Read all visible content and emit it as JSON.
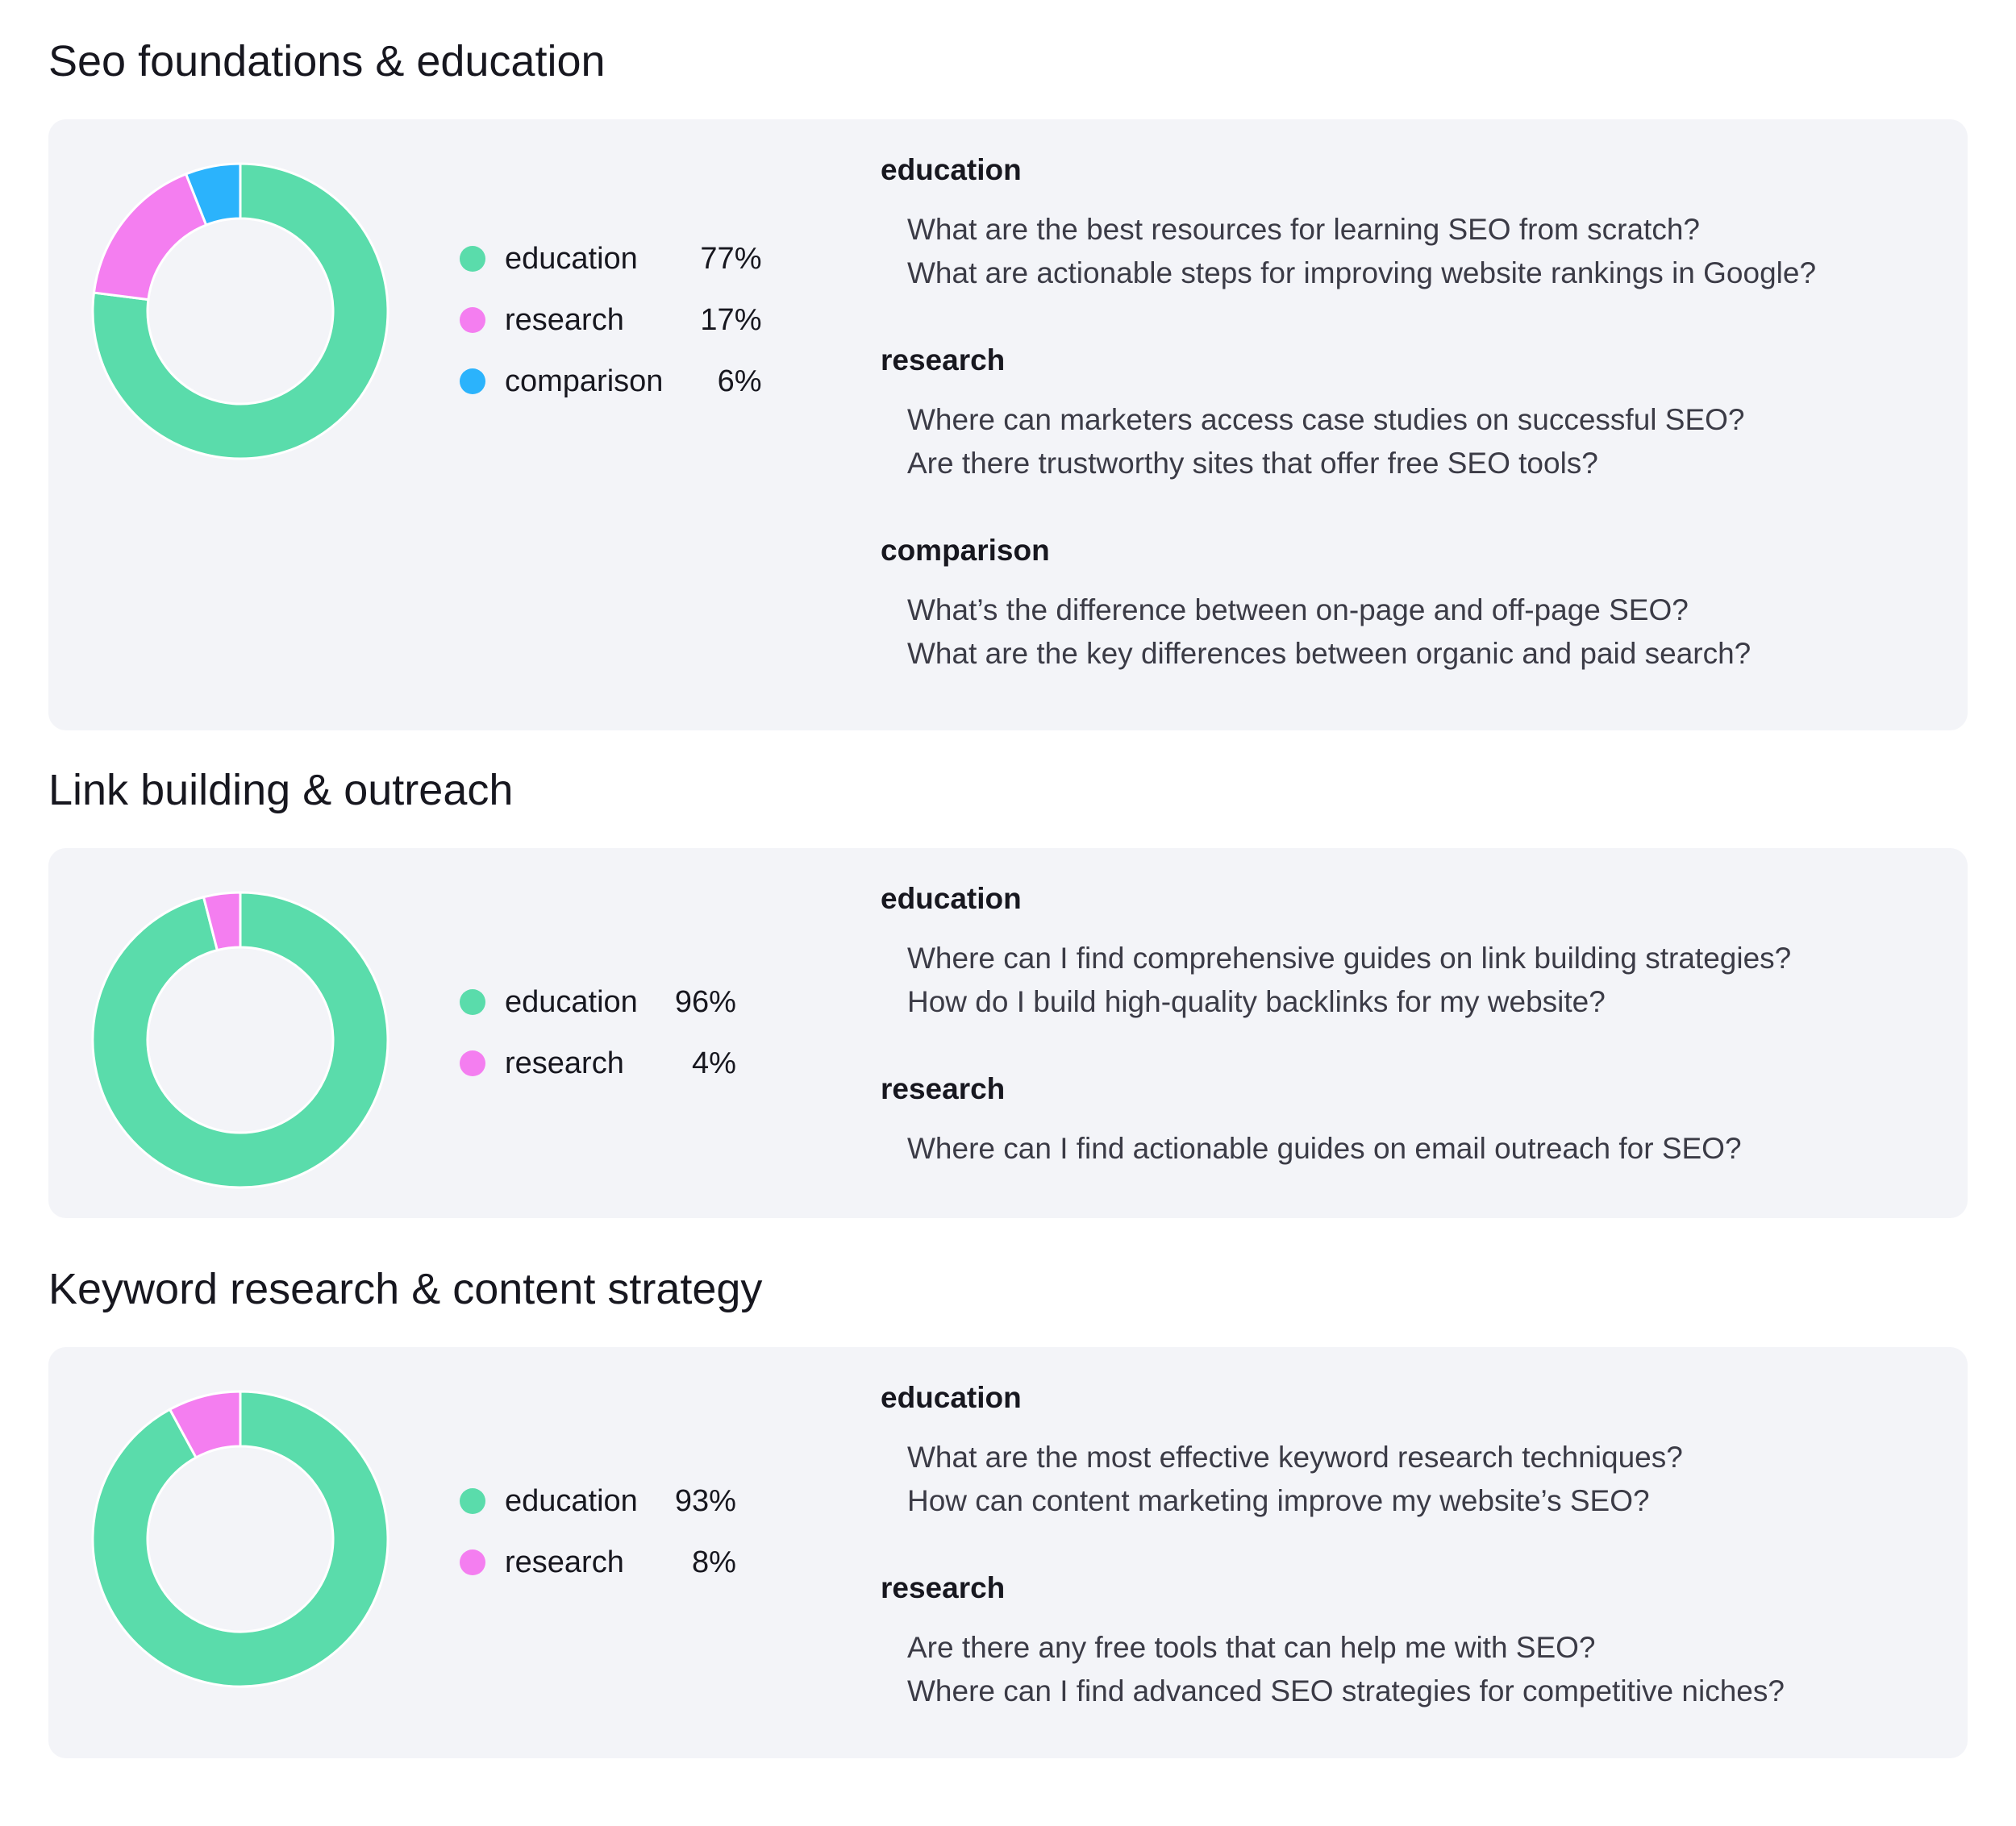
{
  "colors": {
    "education": "#5adcab",
    "research": "#f47ef0",
    "comparison": "#2bb3fc",
    "card_background": "#f3f4f8"
  },
  "sections": [
    {
      "title": "Seo foundations & education",
      "chart_data": {
        "type": "pie",
        "variant": "donut",
        "start": "top, clockwise",
        "series": [
          {
            "name": "education",
            "value": 77,
            "label": "77%"
          },
          {
            "name": "research",
            "value": 17,
            "label": "17%"
          },
          {
            "name": "comparison",
            "value": 6,
            "label": "6%"
          }
        ],
        "legend": "right"
      },
      "groups": [
        {
          "heading": "education",
          "questions": [
            "What are the best resources for learning SEO from scratch?",
            "What are actionable steps for improving website rankings in Google?"
          ]
        },
        {
          "heading": "research",
          "questions": [
            "Where can marketers access case studies on successful SEO?",
            "Are there trustworthy sites that offer free SEO tools?"
          ]
        },
        {
          "heading": "comparison",
          "questions": [
            "What’s the difference between on-page and off-page SEO?",
            "What are the key differences between organic and paid search?"
          ]
        }
      ]
    },
    {
      "title": "Link building & outreach",
      "chart_data": {
        "type": "pie",
        "variant": "donut",
        "start": "top, clockwise",
        "series": [
          {
            "name": "education",
            "value": 96,
            "label": "96%"
          },
          {
            "name": "research",
            "value": 4,
            "label": "4%"
          }
        ],
        "legend": "right"
      },
      "groups": [
        {
          "heading": "education",
          "questions": [
            "Where can I find comprehensive guides on link building strategies?",
            "How do I build high-quality backlinks for my website?"
          ]
        },
        {
          "heading": "research",
          "questions": [
            "Where can I find actionable guides on email outreach for SEO?"
          ]
        }
      ]
    },
    {
      "title": "Keyword research & content strategy",
      "chart_data": {
        "type": "pie",
        "variant": "donut",
        "start": "top, clockwise",
        "series": [
          {
            "name": "education",
            "value": 93,
            "label": "93%"
          },
          {
            "name": "research",
            "value": 8,
            "label": "8%"
          }
        ],
        "legend": "right"
      },
      "groups": [
        {
          "heading": "education",
          "questions": [
            "What are the most effective keyword research techniques?",
            "How can content marketing improve my website’s SEO?"
          ]
        },
        {
          "heading": "research",
          "questions": [
            "Are there any free tools that can help me with SEO?",
            "Where can I find advanced SEO strategies for competitive niches?"
          ]
        }
      ]
    }
  ]
}
